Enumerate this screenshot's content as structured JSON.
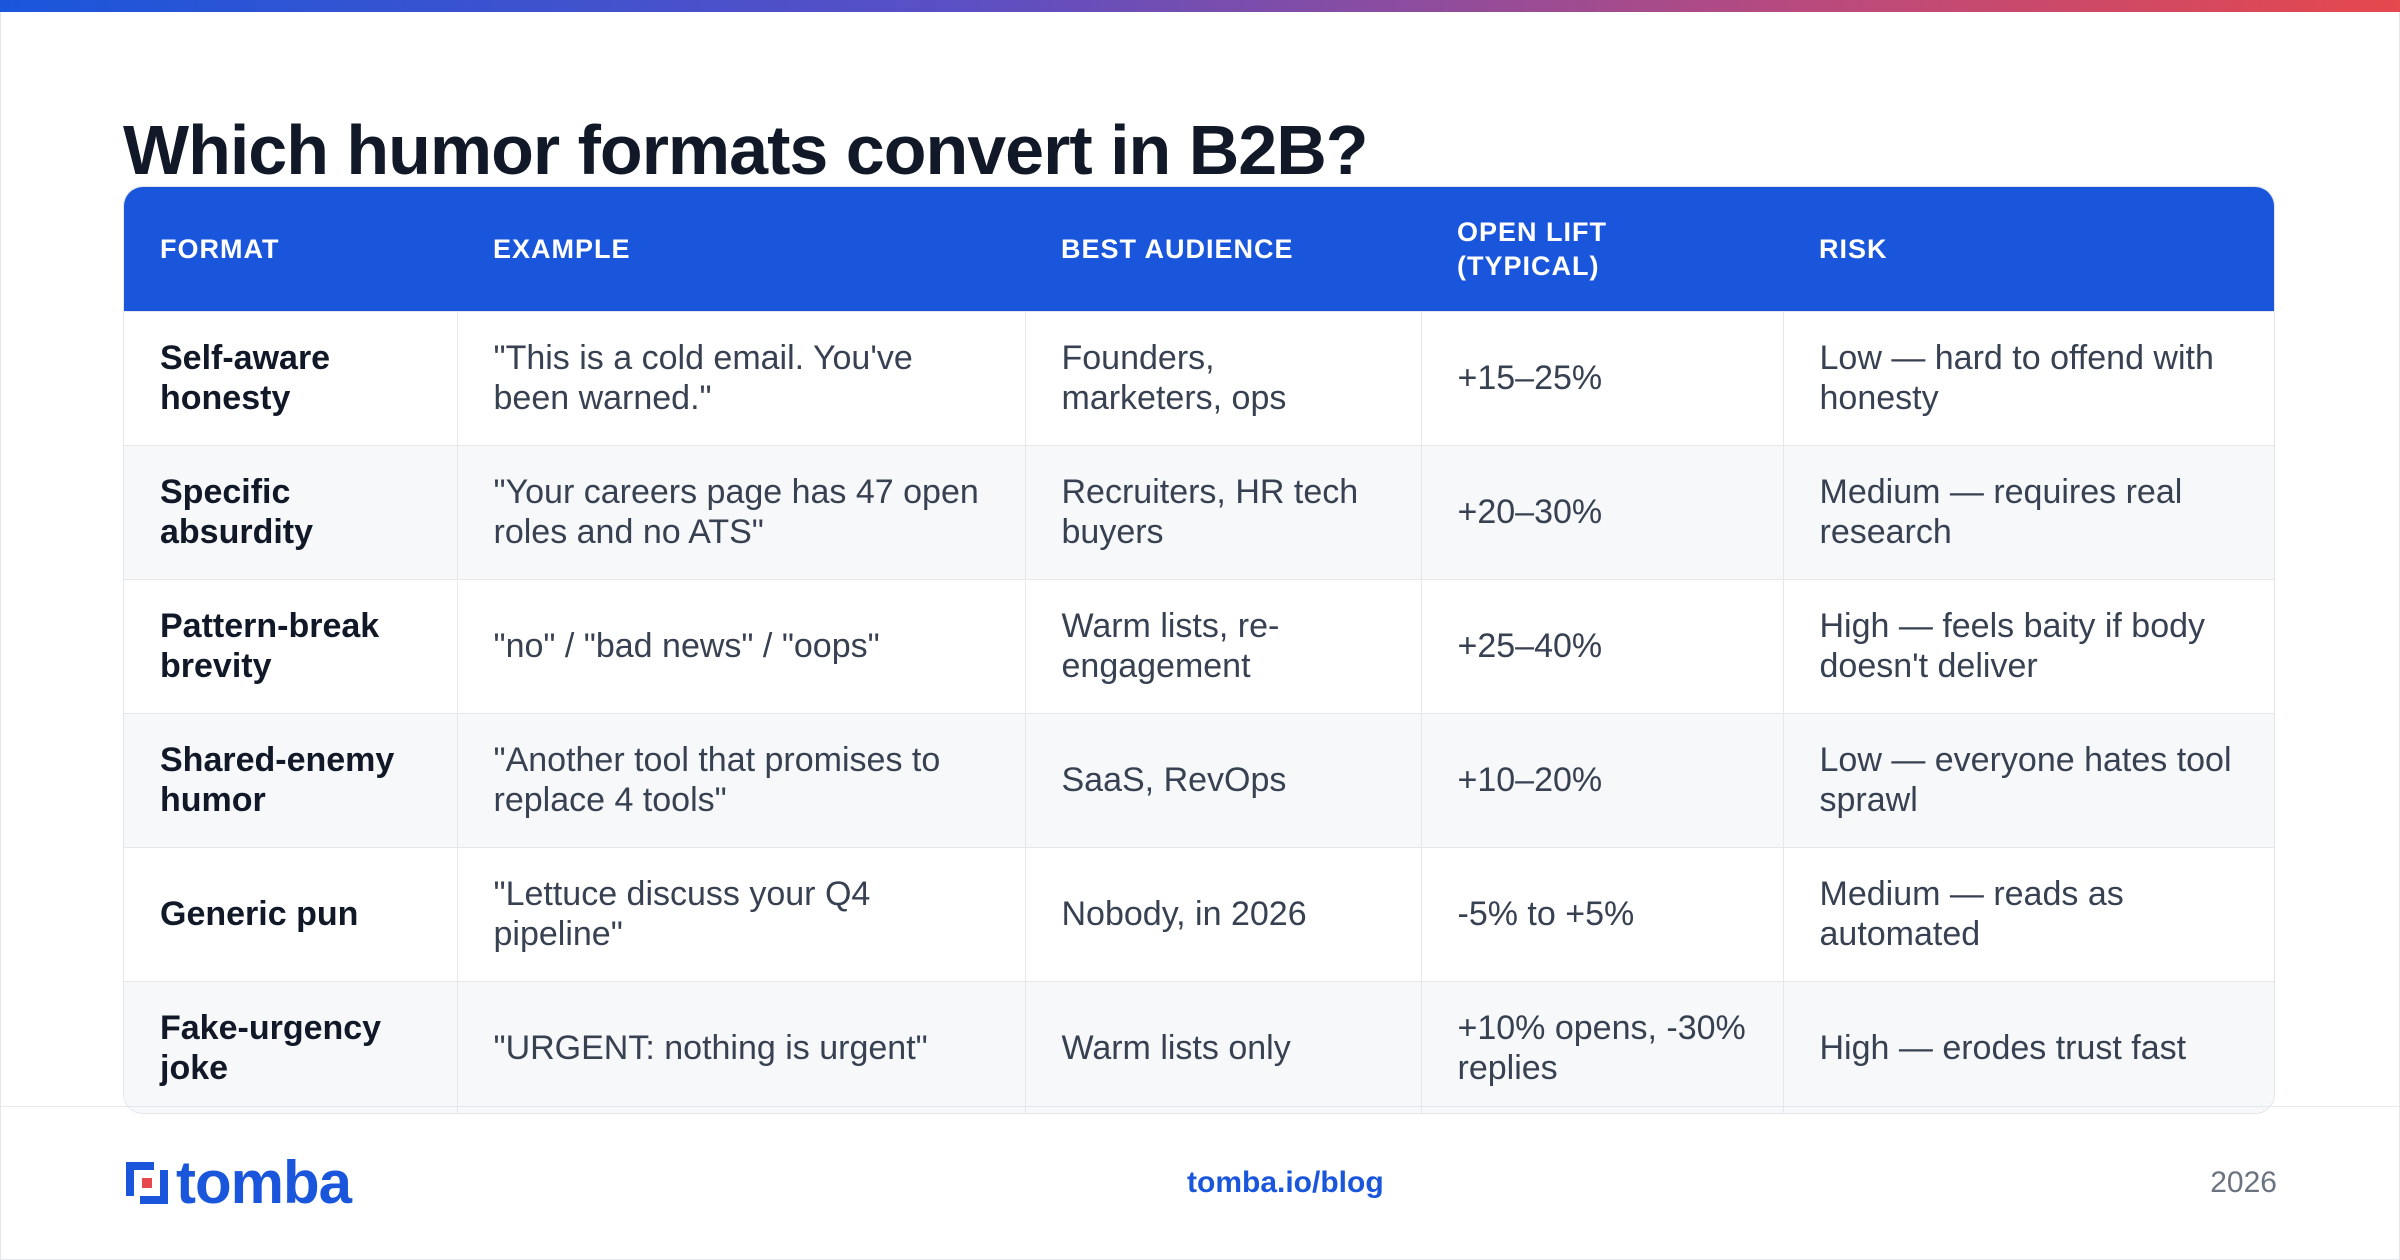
{
  "title": "Which humor formats convert in B2B?",
  "colors": {
    "accent": "#1a56db",
    "gradient_end": "#e5484d",
    "heading_text": "#111827",
    "body_text": "#374151"
  },
  "table": {
    "headers": [
      "FORMAT",
      "EXAMPLE",
      "BEST AUDIENCE",
      "OPEN LIFT (TYPICAL)",
      "RISK"
    ],
    "rows": [
      [
        "Self-aware honesty",
        "\"This is a cold email. You've been warned.\"",
        "Founders, marketers, ops",
        "+15–25%",
        "Low — hard to offend with honesty"
      ],
      [
        "Specific absurdity",
        "\"Your careers page has 47 open roles and no ATS\"",
        "Recruiters, HR tech buyers",
        "+20–30%",
        "Medium — requires real research"
      ],
      [
        "Pattern-break brevity",
        "\"no\" / \"bad news\" / \"oops\"",
        "Warm lists, re-engagement",
        "+25–40%",
        "High — feels baity if body doesn't deliver"
      ],
      [
        "Shared-enemy humor",
        "\"Another tool that promises to replace 4 tools\"",
        "SaaS, RevOps",
        "+10–20%",
        "Low — everyone hates tool sprawl"
      ],
      [
        "Generic pun",
        "\"Lettuce discuss your Q4 pipeline\"",
        "Nobody, in 2026",
        "-5% to +5%",
        "Medium — reads as automated"
      ],
      [
        "Fake-urgency joke",
        "\"URGENT: nothing is urgent\"",
        "Warm lists only",
        "+10% opens, -30% replies",
        "High — erodes trust fast"
      ]
    ]
  },
  "footer": {
    "logo_text": "tomba",
    "logo_icon": "tomba-logo-icon",
    "url": "tomba.io/blog",
    "year": "2026"
  }
}
